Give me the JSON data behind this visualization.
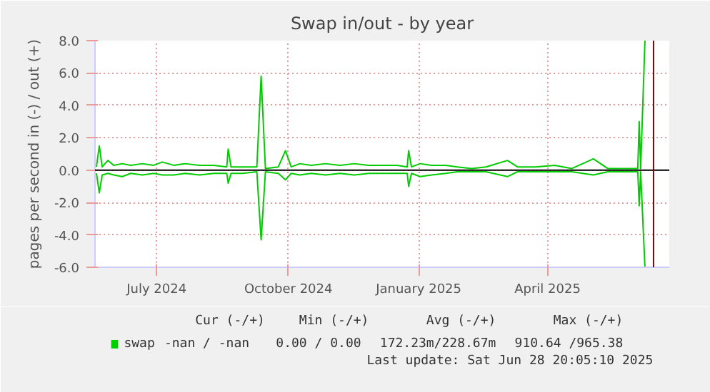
{
  "chart_data": {
    "type": "line",
    "title": "Swap in/out - by year",
    "ylabel": "pages per second in (-) / out (+)",
    "x": [
      "2024-06-04",
      "2024-06-06",
      "2024-06-08",
      "2024-06-12",
      "2024-06-16",
      "2024-06-22",
      "2024-06-28",
      "2024-07-06",
      "2024-07-14",
      "2024-07-20",
      "2024-07-28",
      "2024-08-05",
      "2024-08-15",
      "2024-08-25",
      "2024-09-03",
      "2024-09-04",
      "2024-09-06",
      "2024-09-14",
      "2024-09-24",
      "2024-09-27",
      "2024-09-30",
      "2024-10-09",
      "2024-10-14",
      "2024-10-18",
      "2024-10-24",
      "2024-11-01",
      "2024-11-11",
      "2024-11-21",
      "2024-12-01",
      "2024-12-11",
      "2024-12-21",
      "2024-12-31",
      "2025-01-07",
      "2025-01-08",
      "2025-01-10",
      "2025-01-16",
      "2025-01-24",
      "2025-02-03",
      "2025-02-11",
      "2025-02-21",
      "2025-03-03",
      "2025-03-18",
      "2025-03-25",
      "2025-04-07",
      "2025-04-20",
      "2025-05-02",
      "2025-05-17",
      "2025-05-27",
      "2025-06-11",
      "2025-06-17",
      "2025-06-18",
      "2025-06-19",
      "2025-06-22"
    ],
    "series": [
      {
        "name": "swap",
        "color": "#00cc00",
        "values": [
          0.2,
          1.5,
          0.2,
          0.6,
          0.3,
          0.4,
          0.3,
          0.4,
          0.3,
          0.5,
          0.3,
          0.4,
          0.3,
          0.3,
          0.2,
          1.3,
          0.2,
          0.2,
          0.2,
          5.8,
          0.1,
          0.2,
          1.2,
          0.2,
          0.4,
          0.3,
          0.4,
          0.3,
          0.4,
          0.3,
          0.3,
          0.3,
          0.2,
          1.2,
          0.2,
          0.4,
          0.3,
          0.3,
          0.2,
          0.1,
          0.2,
          0.6,
          0.2,
          0.2,
          0.3,
          0.1,
          0.7,
          0.1,
          0.1,
          0.1,
          3.0,
          0.1,
          8.0
        ]
      },
      {
        "color": "#00cc00",
        "values": [
          -0.2,
          -1.4,
          -0.3,
          -0.2,
          -0.3,
          -0.4,
          -0.2,
          -0.3,
          -0.2,
          -0.3,
          -0.3,
          -0.2,
          -0.3,
          -0.2,
          -0.2,
          -0.8,
          -0.2,
          -0.2,
          -0.1,
          -4.3,
          -0.1,
          -0.2,
          -0.6,
          -0.2,
          -0.3,
          -0.2,
          -0.3,
          -0.2,
          -0.3,
          -0.2,
          -0.2,
          -0.2,
          -0.2,
          -1.0,
          -0.2,
          -0.4,
          -0.3,
          -0.2,
          -0.1,
          -0.1,
          -0.1,
          -0.4,
          -0.1,
          -0.1,
          -0.1,
          -0.1,
          -0.3,
          -0.1,
          -0.1,
          -0.1,
          -2.2,
          -0.1,
          -6.0
        ]
      }
    ],
    "xlim": [
      "2024-06-03",
      "2025-07-09"
    ],
    "xticks": [
      {
        "value": "2024-07-16",
        "label": "July 2024"
      },
      {
        "value": "2024-10-16",
        "label": "October 2024"
      },
      {
        "value": "2025-01-15",
        "label": "January 2025"
      },
      {
        "value": "2025-04-15",
        "label": "April 2025"
      }
    ],
    "ylim": [
      -6.0,
      8.0
    ],
    "yticks": [
      {
        "value": -6,
        "label": "-6.0"
      },
      {
        "value": -4,
        "label": "-4.0"
      },
      {
        "value": -2,
        "label": "-2.0"
      },
      {
        "value": 0,
        "label": "0.0"
      },
      {
        "value": 2,
        "label": "2.0"
      },
      {
        "value": 4,
        "label": "4.0"
      },
      {
        "value": 6,
        "label": "6.0"
      },
      {
        "value": 8,
        "label": "8.0"
      }
    ],
    "ref_lines": [
      {
        "axis": "y",
        "value": 0,
        "color": "#000000"
      },
      {
        "axis": "x",
        "value": "2025-06-28",
        "color": "#880000"
      }
    ],
    "grid": true,
    "legend": "bottom",
    "annotations": [
      "Cur (-/+)",
      "Min (-/+)",
      "Avg (-/+)",
      "Max (-/+)",
      "-nan /   -nan",
      "0.00 /  0.00",
      "172.23m/228.67m",
      "910.64 /965.38",
      "Last update: Sat Jun 28 20:05:10 2025"
    ]
  }
}
